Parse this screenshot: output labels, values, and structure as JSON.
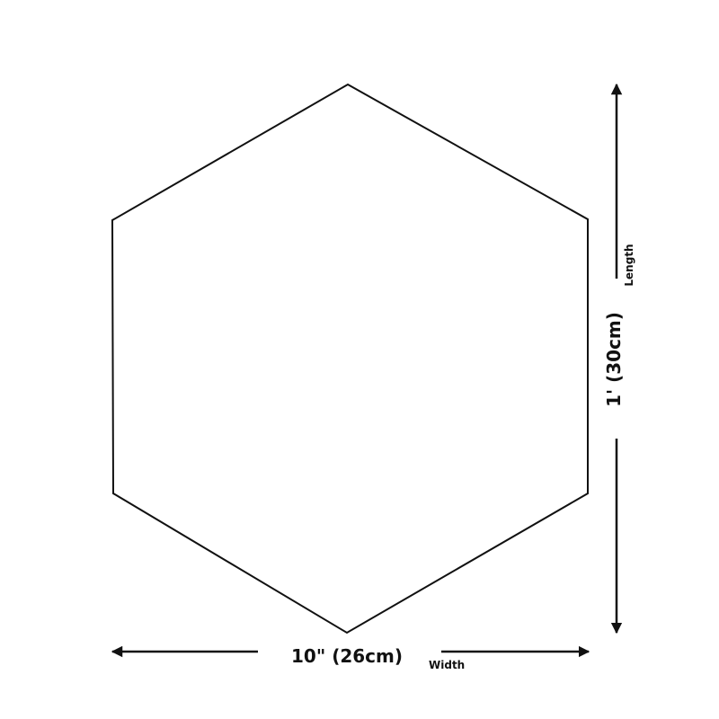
{
  "shape": "hexagon",
  "colors": {
    "stroke": "#111111",
    "background": "#ffffff"
  },
  "width": {
    "value": "10\" (26cm)",
    "label": "Width"
  },
  "length": {
    "value": "1' (30cm)",
    "label": "Length"
  }
}
